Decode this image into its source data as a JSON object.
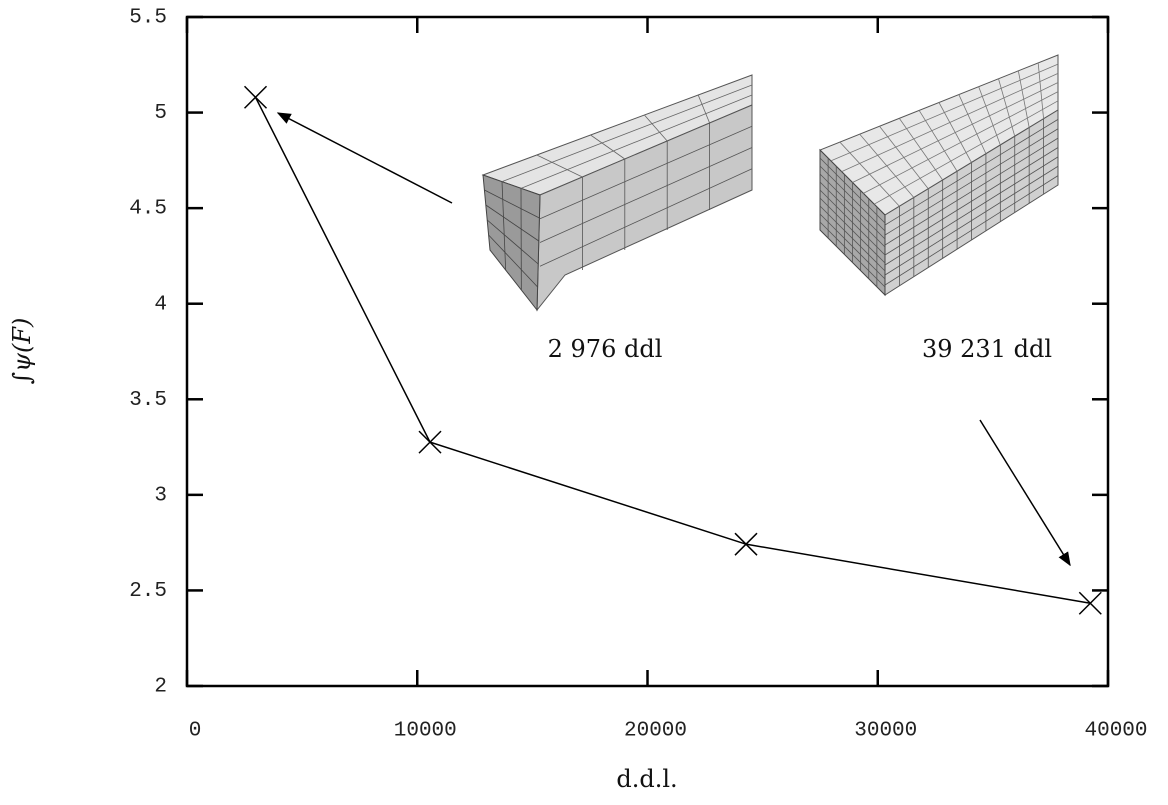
{
  "chart_data": {
    "type": "line",
    "x_label": "d.d.l.",
    "y_label": "∫ψ(F)",
    "series": [
      {
        "color": "#000000",
        "x": [
          2976,
          10554,
          24278,
          39231
        ],
        "values": [
          5.08,
          3.276,
          2.742,
          2.433
        ]
      }
    ],
    "xlim": [
      0,
      40000
    ],
    "xticks": [
      0,
      10000,
      20000,
      30000,
      40000
    ],
    "ylim": [
      2,
      5.5
    ],
    "yticks": [
      2,
      2.5,
      3,
      3.5,
      4,
      4.5,
      5,
      5.5
    ],
    "annotations": [
      "2 976 ddl",
      "39 231 ddl"
    ],
    "grid": false
  }
}
